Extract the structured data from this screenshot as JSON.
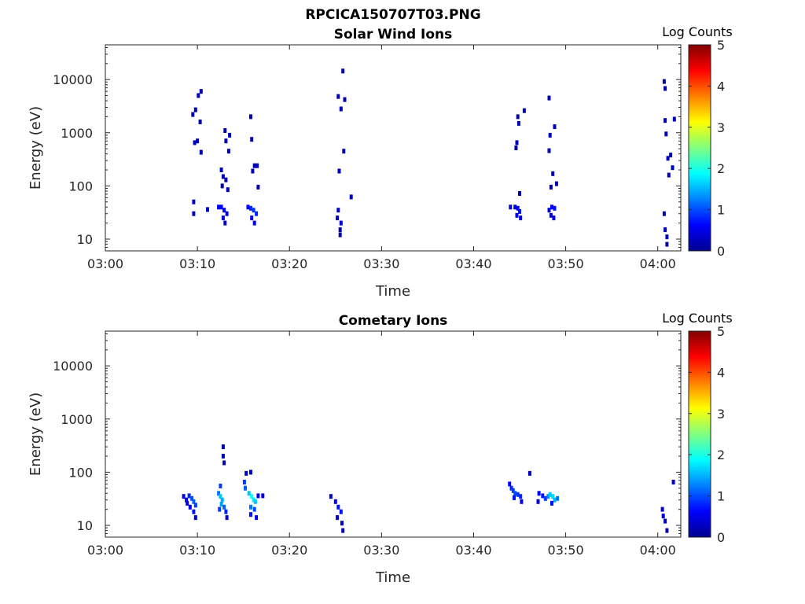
{
  "figure_title": "RPCICA150707T03.PNG",
  "colorbar_label": "Log Counts",
  "colorbar_ticks": [
    "0",
    "1",
    "2",
    "3",
    "4",
    "5"
  ],
  "colormap": [
    "#00008f",
    "#0000ff",
    "#0080ff",
    "#00ffff",
    "#80ff80",
    "#ffff00",
    "#ff8000",
    "#ff0000",
    "#800000"
  ],
  "chart_data": [
    {
      "type": "heatmap",
      "title": "Solar Wind Ions",
      "xlabel": "Time",
      "ylabel": "Energy (eV)",
      "x_ticks": [
        "03:00",
        "03:10",
        "03:20",
        "03:30",
        "03:40",
        "03:50",
        "04:00"
      ],
      "xlim_minutes": [
        0,
        62.5
      ],
      "yscale": "log",
      "ylim": [
        6,
        45000
      ],
      "y_ticks": [
        "10",
        "100",
        "1000",
        "10000"
      ],
      "colorbar_range": [
        0,
        5
      ],
      "points": [
        [
          9.5,
          2200,
          0.2
        ],
        [
          9.8,
          2700,
          0.2
        ],
        [
          10.1,
          5000,
          0.2
        ],
        [
          10.4,
          6000,
          0.2
        ],
        [
          10.3,
          1600,
          0.2
        ],
        [
          9.7,
          650,
          0.2
        ],
        [
          10.0,
          700,
          0.2
        ],
        [
          10.4,
          430,
          0.2
        ],
        [
          9.6,
          50,
          0.3
        ],
        [
          9.6,
          30,
          0.3
        ],
        [
          11.1,
          36,
          0.3
        ],
        [
          12.3,
          40,
          0.5
        ],
        [
          12.6,
          40,
          0.6
        ],
        [
          12.9,
          35,
          0.6
        ],
        [
          13.2,
          30,
          0.5
        ],
        [
          12.8,
          25,
          0.4
        ],
        [
          13.0,
          20,
          0.3
        ],
        [
          12.6,
          200,
          0.2
        ],
        [
          12.8,
          150,
          0.2
        ],
        [
          13.1,
          130,
          0.2
        ],
        [
          12.7,
          100,
          0.2
        ],
        [
          13.3,
          85,
          0.2
        ],
        [
          13.0,
          1100,
          0.2
        ],
        [
          13.5,
          900,
          0.2
        ],
        [
          13.1,
          700,
          0.2
        ],
        [
          13.4,
          450,
          0.2
        ],
        [
          15.5,
          40,
          0.6
        ],
        [
          15.8,
          38,
          0.8
        ],
        [
          16.1,
          35,
          0.9
        ],
        [
          16.4,
          30,
          0.8
        ],
        [
          15.9,
          25,
          0.6
        ],
        [
          16.2,
          20,
          0.5
        ],
        [
          15.8,
          2000,
          0.2
        ],
        [
          15.9,
          750,
          0.2
        ],
        [
          16.2,
          240,
          0.2
        ],
        [
          16.5,
          240,
          0.2
        ],
        [
          16.0,
          190,
          0.2
        ],
        [
          16.6,
          95,
          0.2
        ],
        [
          25.3,
          35,
          0.3
        ],
        [
          25.2,
          25,
          0.3
        ],
        [
          25.6,
          20,
          0.4
        ],
        [
          25.5,
          15,
          0.3
        ],
        [
          25.5,
          12,
          0.2
        ],
        [
          25.4,
          190,
          0.2
        ],
        [
          25.6,
          2800,
          0.2
        ],
        [
          25.3,
          4800,
          0.2
        ],
        [
          26.0,
          4200,
          0.2
        ],
        [
          25.8,
          14500,
          0.2
        ],
        [
          25.9,
          450,
          0.2
        ],
        [
          26.7,
          62,
          0.3
        ],
        [
          44.0,
          40,
          0.4
        ],
        [
          44.5,
          40,
          0.4
        ],
        [
          44.8,
          38,
          0.6
        ],
        [
          45.0,
          33,
          0.7
        ],
        [
          44.7,
          28,
          0.5
        ],
        [
          45.1,
          25,
          0.5
        ],
        [
          45.0,
          72,
          0.2
        ],
        [
          44.8,
          2000,
          0.2
        ],
        [
          44.9,
          1500,
          0.2
        ],
        [
          45.5,
          2600,
          0.2
        ],
        [
          44.7,
          650,
          0.2
        ],
        [
          44.6,
          520,
          0.2
        ],
        [
          48.2,
          35,
          0.5
        ],
        [
          48.5,
          40,
          0.6
        ],
        [
          48.8,
          38,
          0.7
        ],
        [
          48.4,
          28,
          0.5
        ],
        [
          48.7,
          25,
          0.5
        ],
        [
          48.2,
          4500,
          0.2
        ],
        [
          48.8,
          1300,
          0.2
        ],
        [
          48.3,
          900,
          0.2
        ],
        [
          48.2,
          460,
          0.2
        ],
        [
          48.6,
          170,
          0.2
        ],
        [
          49.0,
          110,
          0.2
        ],
        [
          48.4,
          95,
          0.2
        ],
        [
          60.7,
          9200,
          0.2
        ],
        [
          60.8,
          6800,
          0.2
        ],
        [
          60.8,
          1700,
          0.2
        ],
        [
          60.9,
          950,
          0.2
        ],
        [
          61.1,
          330,
          0.2
        ],
        [
          61.4,
          380,
          0.2
        ],
        [
          61.2,
          160,
          0.2
        ],
        [
          61.6,
          220,
          0.2
        ],
        [
          61.8,
          1800,
          0.2
        ],
        [
          60.7,
          30,
          0.3
        ],
        [
          60.8,
          15,
          0.3
        ],
        [
          61.0,
          11,
          0.3
        ],
        [
          61.0,
          8,
          0.2
        ]
      ]
    },
    {
      "type": "heatmap",
      "title": "Cometary Ions",
      "xlabel": "Time",
      "ylabel": "Energy (eV)",
      "x_ticks": [
        "03:00",
        "03:10",
        "03:20",
        "03:30",
        "03:40",
        "03:50",
        "04:00"
      ],
      "xlim_minutes": [
        0,
        62.5
      ],
      "yscale": "log",
      "ylim": [
        6,
        45000
      ],
      "y_ticks": [
        "10",
        "100",
        "1000",
        "10000"
      ],
      "colorbar_range": [
        0,
        5
      ],
      "points": [
        [
          8.5,
          35,
          0.4
        ],
        [
          8.8,
          30,
          0.6
        ],
        [
          9.1,
          36,
          0.8
        ],
        [
          9.4,
          32,
          1.0
        ],
        [
          9.6,
          28,
          1.1
        ],
        [
          9.8,
          24,
          0.9
        ],
        [
          9.6,
          18,
          0.7
        ],
        [
          9.8,
          14,
          0.4
        ],
        [
          9.2,
          22,
          0.5
        ],
        [
          8.9,
          26,
          0.4
        ],
        [
          12.3,
          40,
          1.2
        ],
        [
          12.5,
          35,
          1.6
        ],
        [
          12.7,
          30,
          1.5
        ],
        [
          12.6,
          25,
          1.4
        ],
        [
          12.9,
          22,
          1.1
        ],
        [
          13.1,
          18,
          0.8
        ],
        [
          12.4,
          20,
          0.9
        ],
        [
          13.2,
          14,
          0.5
        ],
        [
          12.5,
          55,
          0.9
        ],
        [
          12.8,
          300,
          0.2
        ],
        [
          12.8,
          200,
          0.2
        ],
        [
          12.9,
          150,
          0.2
        ],
        [
          15.1,
          65,
          0.9
        ],
        [
          15.2,
          50,
          1.1
        ],
        [
          15.6,
          40,
          1.6
        ],
        [
          15.9,
          35,
          1.9
        ],
        [
          16.1,
          30,
          1.8
        ],
        [
          16.3,
          28,
          1.6
        ],
        [
          15.8,
          22,
          1.2
        ],
        [
          16.2,
          20,
          1.0
        ],
        [
          15.8,
          16,
          0.7
        ],
        [
          16.4,
          14,
          0.5
        ],
        [
          15.3,
          95,
          0.3
        ],
        [
          15.8,
          100,
          0.3
        ],
        [
          16.6,
          36,
          0.5
        ],
        [
          17.1,
          36,
          0.4
        ],
        [
          24.5,
          35,
          0.4
        ],
        [
          25.0,
          28,
          0.6
        ],
        [
          25.3,
          22,
          0.7
        ],
        [
          25.6,
          18,
          0.7
        ],
        [
          25.2,
          14,
          0.4
        ],
        [
          25.7,
          11,
          0.3
        ],
        [
          25.8,
          8,
          0.2
        ],
        [
          43.9,
          60,
          0.6
        ],
        [
          44.1,
          50,
          0.8
        ],
        [
          44.3,
          45,
          0.9
        ],
        [
          44.5,
          40,
          1.0
        ],
        [
          44.8,
          38,
          0.9
        ],
        [
          45.1,
          35,
          0.8
        ],
        [
          44.4,
          33,
          0.7
        ],
        [
          45.2,
          28,
          0.5
        ],
        [
          46.1,
          95,
          0.3
        ],
        [
          47.1,
          40,
          0.6
        ],
        [
          47.5,
          36,
          0.7
        ],
        [
          47.8,
          32,
          0.9
        ],
        [
          48.1,
          35,
          1.3
        ],
        [
          48.3,
          38,
          1.6
        ],
        [
          48.6,
          35,
          1.7
        ],
        [
          48.8,
          30,
          1.5
        ],
        [
          49.1,
          32,
          1.2
        ],
        [
          48.5,
          26,
          0.7
        ],
        [
          47.0,
          28,
          0.4
        ],
        [
          60.5,
          20,
          0.4
        ],
        [
          60.6,
          15,
          0.4
        ],
        [
          60.8,
          12,
          0.3
        ],
        [
          61.0,
          8,
          0.2
        ],
        [
          61.7,
          65,
          0.3
        ]
      ]
    }
  ]
}
